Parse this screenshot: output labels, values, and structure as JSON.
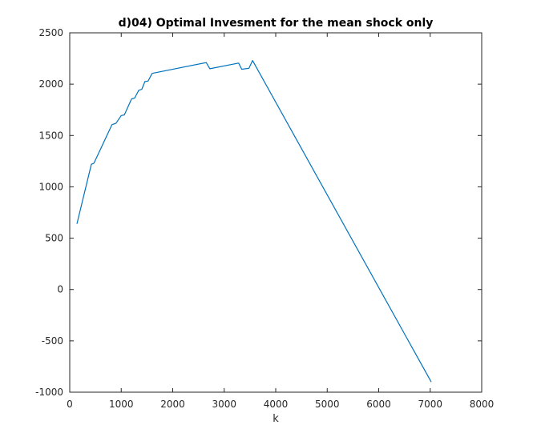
{
  "chart_data": {
    "type": "line",
    "title": "d)04) Optimal Invesment for the mean shock only",
    "xlabel": "k",
    "ylabel": "",
    "xlim": [
      0,
      8000
    ],
    "ylim": [
      -1000,
      2500
    ],
    "x_ticks": [
      0,
      1000,
      2000,
      3000,
      4000,
      5000,
      6000,
      7000,
      8000
    ],
    "y_ticks": [
      -1000,
      -500,
      0,
      500,
      1000,
      1500,
      2000,
      2500
    ],
    "x_tick_labels": [
      "0",
      "1000",
      "2000",
      "3000",
      "4000",
      "5000",
      "6000",
      "7000",
      "8000"
    ],
    "y_tick_labels": [
      "-1000",
      "-500",
      "0",
      "500",
      "1000",
      "1500",
      "2000",
      "2500"
    ],
    "grid": false,
    "line_color": "#0072BD",
    "axis_color": "#262626",
    "series": [
      {
        "x": [
          140,
          420,
          470,
          820,
          900,
          1000,
          1060,
          1200,
          1260,
          1340,
          1400,
          1460,
          1520,
          1600,
          2650,
          2720,
          3280,
          3340,
          3480,
          3550,
          7020
        ],
        "y": [
          640,
          1220,
          1230,
          1605,
          1620,
          1695,
          1700,
          1855,
          1865,
          1940,
          1950,
          2025,
          2030,
          2105,
          2210,
          2150,
          2205,
          2145,
          2155,
          2230,
          -900
        ]
      }
    ]
  }
}
